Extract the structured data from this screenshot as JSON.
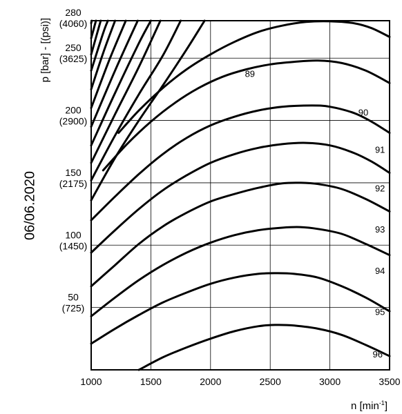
{
  "chart_data": {
    "type": "line",
    "xlabel": "n [min",
    "xlabel_sup": "-1",
    "xlabel_suffix": "]",
    "ylabel": "p [bar] - [(psi)]",
    "xlim": [
      1000,
      3500
    ],
    "ylim": [
      0,
      280
    ],
    "grid": true,
    "x_ticks": [
      {
        "value": 1000,
        "label": "1000"
      },
      {
        "value": 1500,
        "label": "1500"
      },
      {
        "value": 2000,
        "label": "2000"
      },
      {
        "value": 2500,
        "label": "2500"
      },
      {
        "value": 3000,
        "label": "3000"
      },
      {
        "value": 3500,
        "label": "3500"
      }
    ],
    "y_ticks": [
      {
        "value": 280,
        "bar": "280",
        "psi": "(4060)"
      },
      {
        "value": 250,
        "bar": "250",
        "psi": "(3625)"
      },
      {
        "value": 200,
        "bar": "200",
        "psi": "(2900)"
      },
      {
        "value": 150,
        "bar": "150",
        "psi": "(2175)"
      },
      {
        "value": 100,
        "bar": "100",
        "psi": "(1450)"
      },
      {
        "value": 50,
        "bar": "50",
        "psi": "(725)"
      }
    ],
    "series": [
      {
        "name": "96",
        "label_at": [
          3400,
          10
        ],
        "x": [
          1400,
          1600,
          1800,
          2000,
          2200,
          2400,
          2550,
          2700,
          2900,
          3100,
          3300,
          3500
        ],
        "y": [
          0,
          10,
          18,
          25,
          31,
          35,
          36,
          35.5,
          33,
          28,
          20,
          11
        ]
      },
      {
        "name": "95",
        "label_at": [
          3420,
          44
        ],
        "x": [
          1000,
          1200,
          1400,
          1600,
          1800,
          2000,
          2200,
          2400,
          2550,
          2700,
          2900,
          3100,
          3300,
          3500
        ],
        "y": [
          21,
          33,
          44,
          54,
          62,
          69,
          74,
          77,
          77.5,
          77,
          74,
          67,
          58,
          47
        ]
      },
      {
        "name": "94",
        "label_at": [
          3420,
          77
        ],
        "x": [
          1000,
          1200,
          1400,
          1600,
          1800,
          2000,
          2200,
          2400,
          2600,
          2750,
          2900,
          3100,
          3300,
          3500
        ],
        "y": [
          43,
          58,
          72,
          84,
          94,
          102,
          108,
          112,
          114,
          114.5,
          113,
          109,
          101,
          92
        ]
      },
      {
        "name": "93",
        "label_at": [
          3420,
          110
        ],
        "x": [
          1000,
          1200,
          1400,
          1600,
          1800,
          2000,
          2200,
          2400,
          2600,
          2750,
          2900,
          3100,
          3300,
          3500
        ],
        "y": [
          67,
          84,
          101,
          115,
          126,
          135,
          141,
          146,
          149.5,
          150,
          149,
          145,
          137,
          127
        ]
      },
      {
        "name": "92",
        "label_at": [
          3420,
          143
        ],
        "x": [
          1000,
          1200,
          1400,
          1600,
          1800,
          2000,
          2200,
          2400,
          2600,
          2800,
          3000,
          3200,
          3350,
          3500
        ],
        "y": [
          94,
          112,
          129,
          144,
          156,
          166,
          173,
          178,
          181,
          182,
          180,
          174,
          167,
          158
        ]
      },
      {
        "name": "91",
        "label_at": [
          3420,
          174
        ],
        "x": [
          1000,
          1200,
          1400,
          1600,
          1800,
          2000,
          2200,
          2400,
          2600,
          2850,
          3000,
          3200,
          3350,
          3500
        ],
        "y": [
          120,
          139,
          157,
          173,
          186,
          196,
          203,
          208,
          211,
          212,
          211,
          206,
          199,
          190
        ]
      },
      {
        "name": "90",
        "label_at": [
          3280,
          204
        ],
        "x": [
          1100,
          1300,
          1500,
          1700,
          1900,
          2100,
          2300,
          2500,
          2700,
          2900,
          3100,
          3300,
          3500
        ],
        "y": [
          160,
          181,
          199,
          214,
          226,
          235,
          241,
          245,
          247,
          248,
          246,
          240,
          230
        ]
      },
      {
        "name": "89",
        "label_at": [
          2330,
          235
        ],
        "x": [
          1230,
          1400,
          1600,
          1800,
          2000,
          2200,
          2400,
          2600,
          2800,
          3000,
          3200,
          3350,
          3500
        ],
        "y": [
          190,
          208,
          226,
          241,
          253,
          263,
          271,
          276,
          279,
          279.5,
          278,
          274,
          267
        ]
      },
      {
        "name": "",
        "x": [
          1000,
          1200,
          1400,
          1600,
          1800,
          1950
        ],
        "y": [
          136,
          170,
          200,
          228,
          257,
          280
        ]
      },
      {
        "name": "",
        "x": [
          1000,
          1200,
          1400,
          1600,
          1750
        ],
        "y": [
          152,
          188,
          221,
          252,
          280
        ]
      },
      {
        "name": "",
        "x": [
          1000,
          1200,
          1400,
          1580
        ],
        "y": [
          166,
          205,
          243,
          280
        ]
      },
      {
        "name": "",
        "x": [
          1000,
          1200,
          1400,
          1500
        ],
        "y": [
          180,
          222,
          262,
          280
        ]
      },
      {
        "name": "",
        "x": [
          1000,
          1200,
          1390
        ],
        "y": [
          195,
          240,
          280
        ]
      },
      {
        "name": "",
        "x": [
          1000,
          1150,
          1290
        ],
        "y": [
          210,
          248,
          280
        ]
      },
      {
        "name": "",
        "x": [
          1000,
          1100,
          1200
        ],
        "y": [
          225,
          254,
          280
        ]
      },
      {
        "name": "",
        "x": [
          1000,
          1100,
          1140
        ],
        "y": [
          240,
          270,
          280
        ]
      },
      {
        "name": "",
        "x": [
          1000,
          1080
        ],
        "y": [
          253,
          280
        ]
      },
      {
        "name": "",
        "x": [
          1000,
          1040
        ],
        "y": [
          266,
          280
        ]
      },
      {
        "name": "",
        "x": [
          1000,
          1005
        ],
        "y": [
          278,
          280
        ]
      }
    ]
  },
  "side_stamp": "06/06.2020"
}
